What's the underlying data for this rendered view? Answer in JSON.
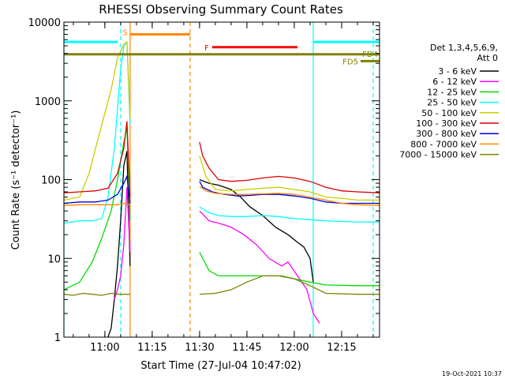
{
  "chart_data": {
    "type": "line",
    "title": "RHESSI Observing Summary Count Rates",
    "xlabel": "Start Time (27-Jul-04 10:47:02)",
    "ylabel": "Count Rate (s⁻¹ detector⁻¹)",
    "yscale": "log",
    "ylim": [
      1,
      10000
    ],
    "xlim": [
      "10:47:02",
      "12:27:00"
    ],
    "x_ticks": [
      "11:00",
      "11:15",
      "11:30",
      "11:45",
      "12:00",
      "12:15"
    ],
    "y_ticks": [
      "1",
      "10",
      "100",
      "1000",
      "10000"
    ],
    "legend": {
      "placement": "right",
      "header": [
        "Det 1,3,4,5,6,9,",
        "Att 0"
      ],
      "entries": [
        {
          "label": "3 - 6 keV",
          "color": "#000000"
        },
        {
          "label": "6 - 12 keV",
          "color": "#ff00ff"
        },
        {
          "label": "12 - 25 keV",
          "color": "#00dd00"
        },
        {
          "label": "25 - 50 keV",
          "color": "#00ffff"
        },
        {
          "label": "50 - 100 keV",
          "color": "#cccc00"
        },
        {
          "label": "100 - 300 keV",
          "color": "#dd0000"
        },
        {
          "label": "300 - 800 keV",
          "color": "#0000dd"
        },
        {
          "label": "800 - 7000 keV",
          "color": "#ff8800"
        },
        {
          "label": "7000 - 15000 keV",
          "color": "#808000"
        }
      ]
    },
    "annotations": [
      {
        "label": "S",
        "color": "#ff8800"
      },
      {
        "label": "F",
        "color": "#ff0000"
      },
      {
        "label": "FD4",
        "color": "#808000"
      },
      {
        "label": "FD5",
        "color": "#808000"
      }
    ],
    "bars": [
      {
        "name": "S",
        "start": "11:08",
        "end": "11:27",
        "level": 7000,
        "color": "#ff8800"
      },
      {
        "name": "F",
        "start": "11:34",
        "end": "12:01",
        "level": 4800,
        "color": "#ff0000"
      },
      {
        "name": "FD4",
        "start": "10:47",
        "end": "12:27",
        "level": 3900,
        "color": "#808000"
      },
      {
        "name": "FD5",
        "start": "12:21",
        "end": "12:27",
        "level": 3200,
        "color": "#808000"
      },
      {
        "name": "night-left",
        "start": "10:47",
        "end": "11:04",
        "level": 5600,
        "color": "#00ffff"
      },
      {
        "name": "night-right",
        "start": "12:06",
        "end": "12:27",
        "level": 5600,
        "color": "#00ffff"
      }
    ],
    "vlines": [
      {
        "t": "10:47",
        "color": "#00ffff",
        "style": "solid"
      },
      {
        "t": "11:05",
        "color": "#00ffff",
        "style": "dashed"
      },
      {
        "t": "11:08",
        "color": "#ff8800",
        "style": "solid"
      },
      {
        "t": "11:27",
        "color": "#ff8800",
        "style": "dashed"
      },
      {
        "t": "12:06",
        "color": "#00ffff",
        "style": "solid"
      },
      {
        "t": "12:25",
        "color": "#00ffff",
        "style": "dashed"
      }
    ],
    "series": [
      {
        "name": "3 - 6 keV",
        "color": "#000000",
        "segments": [
          [
            [
              "11:01",
              1
            ],
            [
              "11:02",
              1.3
            ],
            [
              "11:03",
              3
            ],
            [
              "11:04",
              8
            ],
            [
              "11:05",
              30
            ],
            [
              "11:06",
              150
            ],
            [
              "11:07",
              230
            ],
            [
              "11:08",
              8
            ]
          ],
          [
            [
              "11:30",
              100
            ],
            [
              "11:33",
              90
            ],
            [
              "11:36",
              85
            ],
            [
              "11:40",
              75
            ],
            [
              "11:43",
              60
            ],
            [
              "11:46",
              45
            ],
            [
              "11:50",
              35
            ],
            [
              "11:54",
              25
            ],
            [
              "11:58",
              20
            ],
            [
              "12:01",
              16
            ],
            [
              "12:03",
              14
            ],
            [
              "12:05",
              10
            ],
            [
              "12:06",
              5
            ]
          ]
        ]
      },
      {
        "name": "6 - 12 keV",
        "color": "#ff00ff",
        "segments": [
          [
            [
              "11:03",
              3
            ],
            [
              "11:04",
              4
            ],
            [
              "11:05",
              6
            ],
            [
              "11:06",
              15
            ],
            [
              "11:07",
              80
            ],
            [
              "11:08",
              12
            ]
          ],
          [
            [
              "11:30",
              40
            ],
            [
              "11:33",
              30
            ],
            [
              "11:36",
              28
            ],
            [
              "11:40",
              25
            ],
            [
              "11:44",
              20
            ],
            [
              "11:48",
              15
            ],
            [
              "11:52",
              10
            ],
            [
              "11:56",
              8
            ],
            [
              "11:58",
              9
            ],
            [
              "12:01",
              6
            ],
            [
              "12:04",
              4
            ],
            [
              "12:06",
              2
            ],
            [
              "12:08",
              1.5
            ]
          ]
        ]
      },
      {
        "name": "12 - 25 keV",
        "color": "#00dd00",
        "segments": [
          [
            [
              "10:47",
              4
            ],
            [
              "10:52",
              5
            ],
            [
              "10:56",
              9
            ],
            [
              "10:59",
              18
            ],
            [
              "11:02",
              40
            ],
            [
              "11:04",
              100
            ],
            [
              "11:06",
              300
            ],
            [
              "11:07",
              450
            ],
            [
              "11:08",
              30
            ]
          ],
          [
            [
              "11:30",
              12
            ],
            [
              "11:33",
              7
            ],
            [
              "11:36",
              6
            ],
            [
              "11:40",
              6
            ],
            [
              "11:44",
              6
            ],
            [
              "11:48",
              6
            ],
            [
              "11:52",
              6
            ],
            [
              "11:56",
              6
            ],
            [
              "12:00",
              5.5
            ],
            [
              "12:05",
              5
            ],
            [
              "12:10",
              4.6
            ],
            [
              "12:20",
              4.5
            ],
            [
              "12:27",
              4.5
            ]
          ]
        ]
      },
      {
        "name": "25 - 50 keV",
        "color": "#00ffff",
        "segments": [
          [
            [
              "10:47",
              28
            ],
            [
              "10:52",
              30
            ],
            [
              "10:56",
              30
            ],
            [
              "10:59",
              32
            ],
            [
              "11:01",
              60
            ],
            [
              "11:03",
              250
            ],
            [
              "11:05",
              2500
            ],
            [
              "11:06",
              5000
            ],
            [
              "11:07",
              5600
            ],
            [
              "11:08",
              500
            ]
          ],
          [
            [
              "11:30",
              45
            ],
            [
              "11:33",
              38
            ],
            [
              "11:36",
              35
            ],
            [
              "11:40",
              34
            ],
            [
              "11:45",
              34
            ],
            [
              "11:50",
              35
            ],
            [
              "11:55",
              34
            ],
            [
              "12:00",
              32
            ],
            [
              "12:05",
              31
            ],
            [
              "12:10",
              30
            ],
            [
              "12:20",
              29
            ],
            [
              "12:27",
              29
            ]
          ]
        ]
      },
      {
        "name": "50 - 100 keV",
        "color": "#cccc00",
        "segments": [
          [
            [
              "10:47",
              55
            ],
            [
              "10:52",
              60
            ],
            [
              "10:55",
              120
            ],
            [
              "10:58",
              350
            ],
            [
              "11:00",
              700
            ],
            [
              "11:02",
              1400
            ],
            [
              "11:04",
              3500
            ],
            [
              "11:06",
              5200
            ],
            [
              "11:07",
              5600
            ],
            [
              "11:08",
              600
            ]
          ],
          [
            [
              "11:30",
              200
            ],
            [
              "11:32",
              110
            ],
            [
              "11:35",
              75
            ],
            [
              "11:40",
              72
            ],
            [
              "11:45",
              75
            ],
            [
              "11:50",
              78
            ],
            [
              "11:55",
              80
            ],
            [
              "12:00",
              75
            ],
            [
              "12:05",
              70
            ],
            [
              "12:10",
              60
            ],
            [
              "12:15",
              58
            ],
            [
              "12:20",
              55
            ],
            [
              "12:27",
              55
            ]
          ]
        ]
      },
      {
        "name": "100 - 300 keV",
        "color": "#dd0000",
        "segments": [
          [
            [
              "10:47",
              68
            ],
            [
              "10:52",
              70
            ],
            [
              "10:57",
              72
            ],
            [
              "11:01",
              78
            ],
            [
              "11:04",
              120
            ],
            [
              "11:06",
              250
            ],
            [
              "11:07",
              550
            ],
            [
              "11:08",
              60
            ]
          ],
          [
            [
              "11:30",
              300
            ],
            [
              "11:31",
              200
            ],
            [
              "11:33",
              140
            ],
            [
              "11:36",
              100
            ],
            [
              "11:40",
              95
            ],
            [
              "11:45",
              98
            ],
            [
              "11:50",
              105
            ],
            [
              "11:55",
              110
            ],
            [
              "12:00",
              105
            ],
            [
              "12:05",
              95
            ],
            [
              "12:10",
              80
            ],
            [
              "12:15",
              72
            ],
            [
              "12:20",
              70
            ],
            [
              "12:27",
              68
            ]
          ]
        ]
      },
      {
        "name": "300 - 800 keV",
        "color": "#0000dd",
        "segments": [
          [
            [
              "10:47",
              50
            ],
            [
              "10:52",
              52
            ],
            [
              "10:57",
              52
            ],
            [
              "11:01",
              55
            ],
            [
              "11:04",
              65
            ],
            [
              "11:06",
              90
            ],
            [
              "11:07",
              110
            ],
            [
              "11:08",
              50
            ]
          ],
          [
            [
              "11:30",
              95
            ],
            [
              "11:31",
              80
            ],
            [
              "11:34",
              70
            ],
            [
              "11:38",
              65
            ],
            [
              "11:42",
              62
            ],
            [
              "11:46",
              63
            ],
            [
              "11:50",
              65
            ],
            [
              "11:55",
              65
            ],
            [
              "12:00",
              62
            ],
            [
              "12:05",
              58
            ],
            [
              "12:10",
              52
            ],
            [
              "12:15",
              50
            ],
            [
              "12:20",
              50
            ],
            [
              "12:27",
              50
            ]
          ]
        ]
      },
      {
        "name": "800 - 7000 keV",
        "color": "#ff8800",
        "segments": [
          [
            [
              "10:47",
              47
            ],
            [
              "10:52",
              48
            ],
            [
              "10:57",
              48
            ],
            [
              "11:01",
              48
            ],
            [
              "11:04",
              48
            ],
            [
              "11:06",
              50
            ],
            [
              "11:08",
              48
            ]
          ],
          [
            [
              "11:30",
              82
            ],
            [
              "11:32",
              72
            ],
            [
              "11:35",
              67
            ],
            [
              "11:40",
              65
            ],
            [
              "11:45",
              65
            ],
            [
              "11:50",
              66
            ],
            [
              "11:55",
              67
            ],
            [
              "12:00",
              65
            ],
            [
              "12:05",
              60
            ],
            [
              "12:10",
              55
            ],
            [
              "12:15",
              50
            ],
            [
              "12:20",
              48
            ],
            [
              "12:27",
              47
            ]
          ]
        ]
      },
      {
        "name": "7000 - 15000 keV",
        "color": "#808000",
        "segments": [
          [
            [
              "10:47",
              3.5
            ],
            [
              "10:50",
              3.4
            ],
            [
              "10:53",
              3.6
            ],
            [
              "10:56",
              3.5
            ],
            [
              "10:59",
              3.4
            ],
            [
              "11:02",
              3.6
            ],
            [
              "11:05",
              3.5
            ],
            [
              "11:08",
              3.5
            ]
          ],
          [
            [
              "11:30",
              3.5
            ],
            [
              "11:35",
              3.6
            ],
            [
              "11:40",
              4
            ],
            [
              "11:45",
              5
            ],
            [
              "11:50",
              6
            ],
            [
              "11:55",
              6
            ],
            [
              "12:00",
              5.5
            ],
            [
              "12:05",
              4.5
            ],
            [
              "12:10",
              3.6
            ],
            [
              "12:20",
              3.5
            ],
            [
              "12:27",
              3.5
            ]
          ]
        ]
      }
    ]
  },
  "footer": {
    "timestamp": "19-Oct-2021 10:37"
  }
}
